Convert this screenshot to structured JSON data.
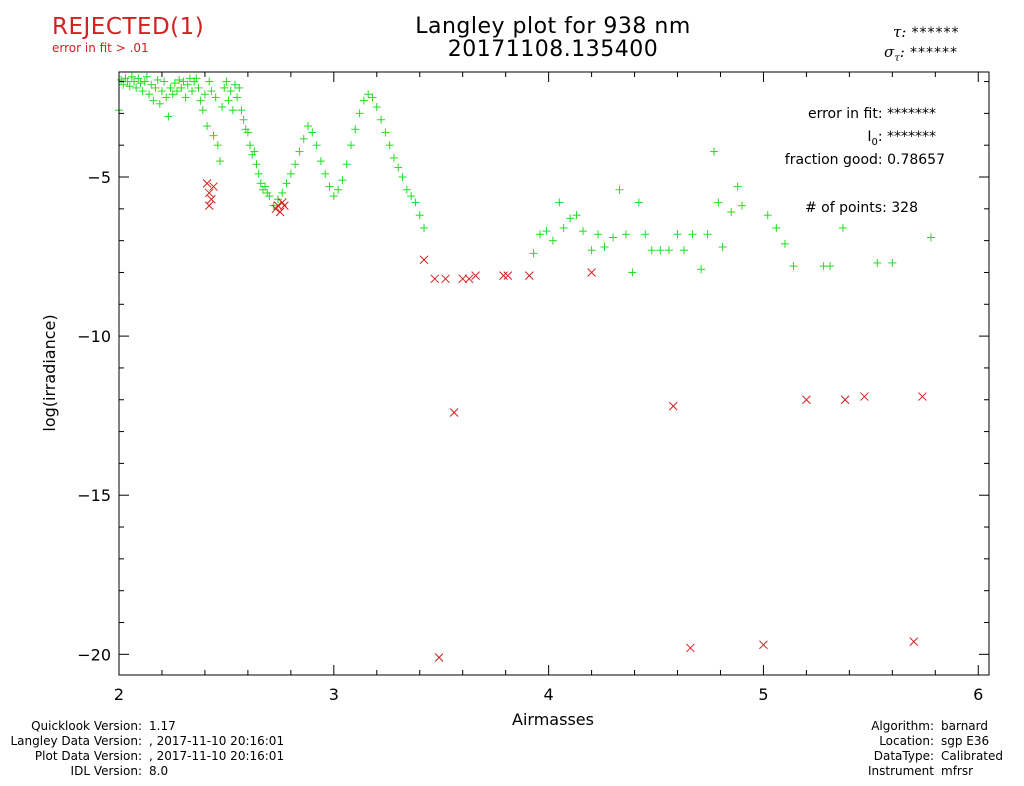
{
  "header": {
    "status": "REJECTED(1)",
    "status_reason": "error in fit > .01",
    "title_line1": "Langley plot for 938 nm",
    "title_line2": "20171108.135400",
    "tau_label": "τ:",
    "tau_value": "******",
    "sigma_label": "σ",
    "sigma_sub": "τ",
    "sigma_colon": ":",
    "sigma_value": "******"
  },
  "fit_info": {
    "error_label": "error in fit:",
    "error_value": "*******",
    "i0_label": "I",
    "i0_sub": "0",
    "i0_colon": ":",
    "i0_value": "*******",
    "fraction_label": "fraction good:",
    "fraction_value": "0.78657",
    "points_label": "# of points:",
    "points_value": "328"
  },
  "footer_left": [
    {
      "label": "Quicklook Version:",
      "value": "1.17"
    },
    {
      "label": "Langley Data Version:",
      "value": ", 2017-11-10 20:16:01"
    },
    {
      "label": "Plot Data Version:",
      "value": ", 2017-11-10 20:16:01"
    },
    {
      "label": "IDL Version:",
      "value": "8.0"
    }
  ],
  "footer_right": [
    {
      "label": "Algorithm:",
      "value": "barnard"
    },
    {
      "label": "Location:",
      "value": "sgp E36"
    },
    {
      "label": "DataType:",
      "value": "Calibrated"
    },
    {
      "label": "Instrument",
      "value": "mfrsr"
    }
  ],
  "colors": {
    "accepted": "#22dd22",
    "rejected": "#d42020",
    "status": "#d42020"
  },
  "chart_data": {
    "type": "scatter",
    "xlabel": "Airmasses",
    "ylabel": "log(irradiance)",
    "xlim": [
      2,
      6.05
    ],
    "ylim": [
      -20.65,
      -1.7
    ],
    "xticks": [
      2,
      3,
      4,
      5,
      6
    ],
    "xtick_labels": [
      "2",
      "3",
      "4",
      "5",
      "6"
    ],
    "yticks": [
      -5,
      -10,
      -15,
      -20
    ],
    "ytick_labels": [
      "−5",
      "−10",
      "−15",
      "−20"
    ],
    "series": [
      {
        "name": "accepted",
        "marker": "+",
        "points": [
          [
            2.0,
            -2.9
          ],
          [
            2.01,
            -1.95
          ],
          [
            2.02,
            -2.1
          ],
          [
            2.03,
            -1.9
          ],
          [
            2.04,
            -2.0
          ],
          [
            2.05,
            -2.15
          ],
          [
            2.06,
            -1.85
          ],
          [
            2.07,
            -2.0
          ],
          [
            2.08,
            -2.2
          ],
          [
            2.09,
            -1.9
          ],
          [
            2.1,
            -2.05
          ],
          [
            2.11,
            -2.3
          ],
          [
            2.12,
            -2.0
          ],
          [
            2.13,
            -1.85
          ],
          [
            2.14,
            -2.4
          ],
          [
            2.15,
            -2.1
          ],
          [
            2.16,
            -2.6
          ],
          [
            2.17,
            -2.2
          ],
          [
            2.18,
            -1.95
          ],
          [
            2.19,
            -2.7
          ],
          [
            2.2,
            -2.3
          ],
          [
            2.21,
            -2.0
          ],
          [
            2.22,
            -2.5
          ],
          [
            2.23,
            -3.1
          ],
          [
            2.24,
            -2.2
          ],
          [
            2.25,
            -2.4
          ],
          [
            2.26,
            -2.05
          ],
          [
            2.27,
            -2.3
          ],
          [
            2.28,
            -1.95
          ],
          [
            2.29,
            -2.2
          ],
          [
            2.3,
            -2.0
          ],
          [
            2.31,
            -2.5
          ],
          [
            2.32,
            -2.1
          ],
          [
            2.33,
            -1.9
          ],
          [
            2.34,
            -2.3
          ],
          [
            2.35,
            -2.0
          ],
          [
            2.36,
            -1.9
          ],
          [
            2.37,
            -2.2
          ],
          [
            2.38,
            -2.6
          ],
          [
            2.39,
            -2.9
          ],
          [
            2.4,
            -2.4
          ],
          [
            2.41,
            -3.4
          ],
          [
            2.42,
            -2.0
          ],
          [
            2.43,
            -2.3
          ],
          [
            2.44,
            -3.7
          ],
          [
            2.45,
            -2.5
          ],
          [
            2.46,
            -4.0
          ],
          [
            2.47,
            -4.5
          ],
          [
            2.48,
            -2.8
          ],
          [
            2.49,
            -2.2
          ],
          [
            2.5,
            -2.0
          ],
          [
            2.51,
            -2.6
          ],
          [
            2.52,
            -2.3
          ],
          [
            2.53,
            -2.9
          ],
          [
            2.54,
            -2.1
          ],
          [
            2.55,
            -2.5
          ],
          [
            2.56,
            -2.2
          ],
          [
            2.57,
            -2.9
          ],
          [
            2.58,
            -3.2
          ],
          [
            2.59,
            -3.5
          ],
          [
            2.6,
            -3.6
          ],
          [
            2.61,
            -4.0
          ],
          [
            2.62,
            -4.3
          ],
          [
            2.63,
            -4.2
          ],
          [
            2.64,
            -4.6
          ],
          [
            2.65,
            -4.9
          ],
          [
            2.66,
            -5.2
          ],
          [
            2.67,
            -5.4
          ],
          [
            2.68,
            -5.3
          ],
          [
            2.69,
            -5.5
          ],
          [
            2.7,
            -5.6
          ],
          [
            2.72,
            -5.9
          ],
          [
            2.74,
            -5.7
          ],
          [
            2.76,
            -5.5
          ],
          [
            2.78,
            -5.2
          ],
          [
            2.8,
            -4.9
          ],
          [
            2.82,
            -4.6
          ],
          [
            2.84,
            -4.2
          ],
          [
            2.86,
            -3.8
          ],
          [
            2.88,
            -3.4
          ],
          [
            2.9,
            -3.6
          ],
          [
            2.92,
            -4.0
          ],
          [
            2.94,
            -4.5
          ],
          [
            2.96,
            -4.9
          ],
          [
            2.98,
            -5.3
          ],
          [
            3.0,
            -5.6
          ],
          [
            3.02,
            -5.4
          ],
          [
            3.04,
            -5.1
          ],
          [
            3.06,
            -4.6
          ],
          [
            3.08,
            -4.0
          ],
          [
            3.1,
            -3.5
          ],
          [
            3.12,
            -3.0
          ],
          [
            3.14,
            -2.6
          ],
          [
            3.16,
            -2.4
          ],
          [
            3.18,
            -2.5
          ],
          [
            3.2,
            -2.8
          ],
          [
            3.22,
            -3.2
          ],
          [
            3.24,
            -3.6
          ],
          [
            3.26,
            -4.0
          ],
          [
            3.28,
            -4.4
          ],
          [
            3.3,
            -4.7
          ],
          [
            3.32,
            -5.0
          ],
          [
            3.34,
            -5.4
          ],
          [
            3.36,
            -5.6
          ],
          [
            3.38,
            -5.8
          ],
          [
            3.4,
            -6.2
          ],
          [
            3.42,
            -6.6
          ],
          [
            3.93,
            -7.4
          ],
          [
            3.96,
            -6.8
          ],
          [
            3.99,
            -6.7
          ],
          [
            4.02,
            -7.0
          ],
          [
            4.05,
            -5.8
          ],
          [
            4.07,
            -6.6
          ],
          [
            4.1,
            -6.3
          ],
          [
            4.13,
            -6.2
          ],
          [
            4.16,
            -6.7
          ],
          [
            4.2,
            -7.3
          ],
          [
            4.23,
            -6.8
          ],
          [
            4.26,
            -7.2
          ],
          [
            4.3,
            -6.9
          ],
          [
            4.33,
            -5.4
          ],
          [
            4.36,
            -6.8
          ],
          [
            4.39,
            -8.0
          ],
          [
            4.42,
            -5.8
          ],
          [
            4.45,
            -6.8
          ],
          [
            4.48,
            -7.3
          ],
          [
            4.52,
            -7.3
          ],
          [
            4.56,
            -7.3
          ],
          [
            4.6,
            -6.8
          ],
          [
            4.63,
            -7.3
          ],
          [
            4.67,
            -6.8
          ],
          [
            4.71,
            -7.9
          ],
          [
            4.74,
            -6.8
          ],
          [
            4.77,
            -4.2
          ],
          [
            4.79,
            -5.8
          ],
          [
            4.81,
            -7.2
          ],
          [
            4.85,
            -6.1
          ],
          [
            4.88,
            -5.3
          ],
          [
            4.9,
            -5.9
          ],
          [
            5.02,
            -6.2
          ],
          [
            5.06,
            -6.6
          ],
          [
            5.1,
            -7.1
          ],
          [
            5.14,
            -7.8
          ],
          [
            5.28,
            -7.8
          ],
          [
            5.31,
            -7.8
          ],
          [
            5.37,
            -6.6
          ],
          [
            5.53,
            -7.7
          ],
          [
            5.6,
            -7.7
          ],
          [
            5.78,
            -6.9
          ]
        ]
      },
      {
        "name": "rejected",
        "marker": "x",
        "points": [
          [
            2.41,
            -5.2
          ],
          [
            2.42,
            -5.5
          ],
          [
            2.43,
            -5.7
          ],
          [
            2.44,
            -5.3
          ],
          [
            2.42,
            -5.9
          ],
          [
            2.74,
            -5.9
          ],
          [
            2.75,
            -6.1
          ],
          [
            2.76,
            -5.8
          ],
          [
            2.73,
            -6.0
          ],
          [
            2.77,
            -5.9
          ],
          [
            3.42,
            -7.6
          ],
          [
            3.47,
            -8.2
          ],
          [
            3.52,
            -8.2
          ],
          [
            3.56,
            -12.4
          ],
          [
            3.6,
            -8.2
          ],
          [
            3.63,
            -8.2
          ],
          [
            3.66,
            -8.1
          ],
          [
            3.79,
            -8.1
          ],
          [
            3.81,
            -8.1
          ],
          [
            3.91,
            -8.1
          ],
          [
            4.2,
            -8.0
          ],
          [
            3.49,
            -20.1
          ],
          [
            4.58,
            -12.2
          ],
          [
            4.66,
            -19.8
          ],
          [
            5.0,
            -19.7
          ],
          [
            5.2,
            -12.0
          ],
          [
            5.38,
            -12.0
          ],
          [
            5.47,
            -11.9
          ],
          [
            5.7,
            -19.6
          ],
          [
            5.74,
            -11.9
          ]
        ]
      }
    ]
  }
}
